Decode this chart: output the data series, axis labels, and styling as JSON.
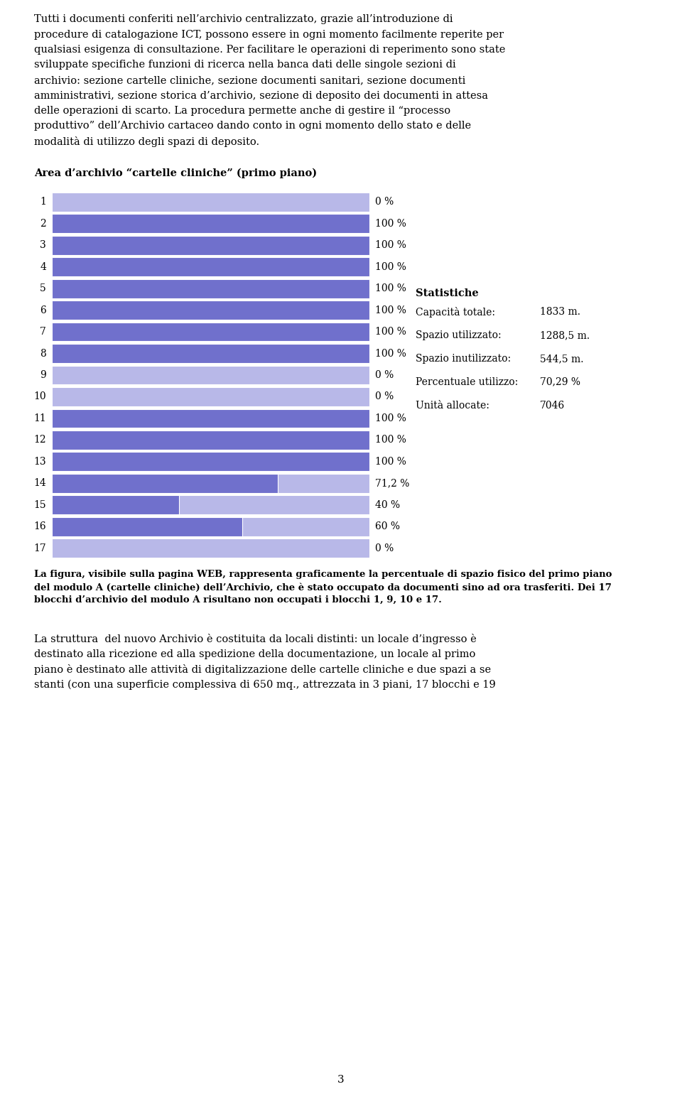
{
  "top_text_lines": [
    "Tutti i documenti conferiti nell’archivio centralizzato, grazie all’introduzione di",
    "procedure di catalogazione ICT, possono essere in ogni momento facilmente reperite per",
    "qualsiasi esigenza di consultazione. Per facilitare le operazioni di reperimento sono state",
    "sviluppate specifiche funzioni di ricerca nella banca dati delle singole sezioni di",
    "archivio: sezione cartelle cliniche, sezione documenti sanitari, sezione documenti",
    "amministrativi, sezione storica d’archivio, sezione di deposito dei documenti in attesa",
    "delle operazioni di scarto. La procedura permette anche di gestire il “processo",
    "produttivo” dell’Archivio cartaceo dando conto in ogni momento dello stato e delle",
    "modalità di utilizzo degli spazi di deposito."
  ],
  "section_title": "Area d’archivio “cartelle cliniche” (primo piano)",
  "rows": [
    1,
    2,
    3,
    4,
    5,
    6,
    7,
    8,
    9,
    10,
    11,
    12,
    13,
    14,
    15,
    16,
    17
  ],
  "percentages": [
    0,
    100,
    100,
    100,
    100,
    100,
    100,
    100,
    0,
    0,
    100,
    100,
    100,
    71.2,
    40,
    60,
    0
  ],
  "pct_labels": [
    "0 %",
    "100 %",
    "100 %",
    "100 %",
    "100 %",
    "100 %",
    "100 %",
    "100 %",
    "0 %",
    "0 %",
    "100 %",
    "100 %",
    "100 %",
    "71,2 %",
    "40 %",
    "60 %",
    "0 %"
  ],
  "bar_full_color": "#7070cc",
  "bar_light_color": "#b8b8e8",
  "stats_title": "Statistiche",
  "stats": [
    [
      "Capacità totale:",
      "1833 m."
    ],
    [
      "Spazio utilizzato:",
      "1288,5 m."
    ],
    [
      "Spazio inutilizzato:",
      "544,5 m."
    ],
    [
      "Percentuale utilizzo:",
      "70,29 %"
    ],
    [
      "Unità allocate:",
      "7046"
    ]
  ],
  "caption_lines": [
    "La figura, visibile sulla pagina WEB, rappresenta graficamente la percentuale di spazio fisico del primo piano",
    "del modulo A (cartelle cliniche) dell’Archivio, che è stato occupato da documenti sino ad ora trasferiti. Dei 17",
    "blocchi d’archivio del modulo A risultano non occupati i blocchi 1, 9, 10 e 17."
  ],
  "bottom_text_lines": [
    "La struttura  del nuovo Archivio è costituita da locali distinti: un locale d’ingresso è",
    "destinato alla ricezione ed alla spedizione della documentazione, un locale al primo",
    "piano è destinato alle attività di digitalizzazione delle cartelle cliniche e due spazi a se",
    "stanti (con una superficie complessiva di 650 mq., attrezzata in 3 piani, 17 blocchi e 19"
  ],
  "page_number": "3",
  "background_color": "#ffffff",
  "text_color": "#000000"
}
